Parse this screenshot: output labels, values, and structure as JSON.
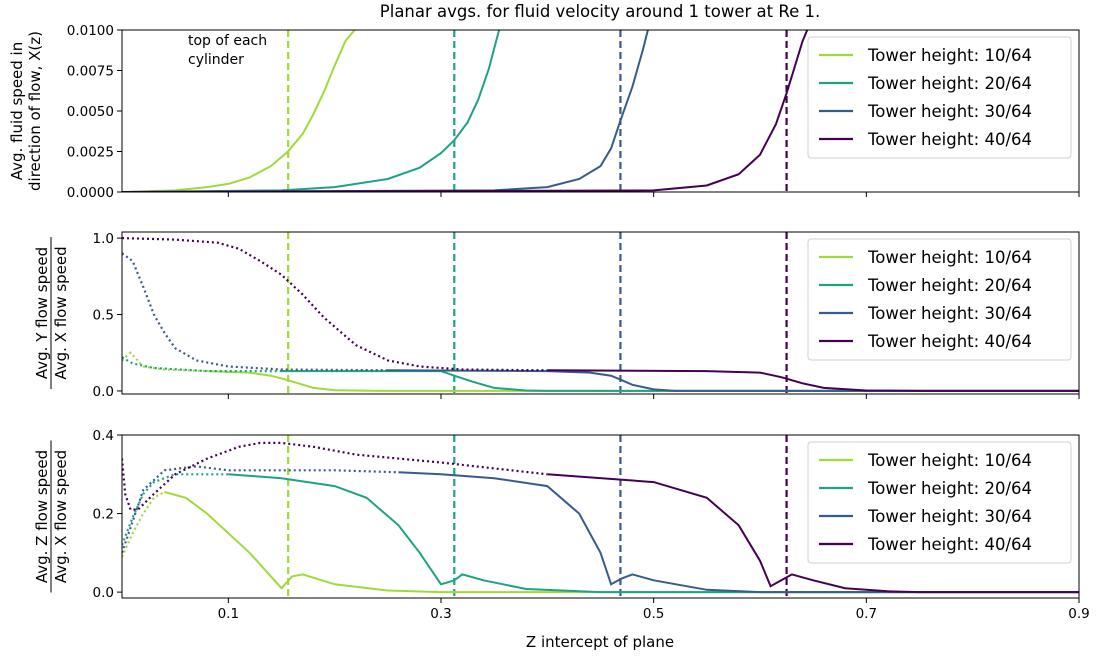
{
  "chart_data": {
    "type": "line",
    "title": "Planar avgs. for fluid velocity around 1 tower at Re 1.",
    "xlabel": "Z intercept of plane",
    "xlim": [
      0.0,
      0.9
    ],
    "x_ticks": [
      0.1,
      0.3,
      0.5,
      0.7,
      0.9
    ],
    "x_tick_labels": [
      "0.1",
      "0.3",
      "0.5",
      "0.7",
      "0.9"
    ],
    "tower_heights": [
      0.15625,
      0.3125,
      0.46875,
      0.625
    ],
    "annotation": [
      "top of each",
      "cylinder"
    ],
    "grid": false,
    "legend_position": "top-right",
    "series_meta": [
      {
        "name": "Tower height: 10/64",
        "color": "#a0da39"
      },
      {
        "name": "Tower height: 20/64",
        "color": "#1fa187"
      },
      {
        "name": "Tower height: 30/64",
        "color": "#365c8d"
      },
      {
        "name": "Tower height: 40/64",
        "color": "#440154"
      }
    ],
    "panels": [
      {
        "ylabel_lines": [
          "Avg. fluid speed in",
          "direction of flow, X(z)"
        ],
        "ylim": [
          0.0,
          0.01
        ],
        "y_ticks": [
          0.0,
          0.0025,
          0.005,
          0.0075,
          0.01
        ],
        "y_tick_labels": [
          "0.0000",
          "0.0025",
          "0.0050",
          "0.0075",
          "0.0100"
        ],
        "series": [
          {
            "name": "Tower height: 10/64",
            "points": [
              [
                0.0,
                0
              ],
              [
                0.05,
                0.0001
              ],
              [
                0.08,
                0.0003
              ],
              [
                0.1,
                0.0005
              ],
              [
                0.12,
                0.0009
              ],
              [
                0.14,
                0.0016
              ],
              [
                0.156,
                0.0025
              ],
              [
                0.17,
                0.0036
              ],
              [
                0.18,
                0.0048
              ],
              [
                0.19,
                0.0062
              ],
              [
                0.2,
                0.0078
              ],
              [
                0.21,
                0.0093
              ],
              [
                0.22,
                0.0101
              ]
            ]
          },
          {
            "name": "Tower height: 20/64",
            "points": [
              [
                0.0,
                0
              ],
              [
                0.15,
                0.0001
              ],
              [
                0.2,
                0.0003
              ],
              [
                0.25,
                0.0008
              ],
              [
                0.28,
                0.0015
              ],
              [
                0.3,
                0.0024
              ],
              [
                0.3125,
                0.0032
              ],
              [
                0.325,
                0.0043
              ],
              [
                0.335,
                0.0057
              ],
              [
                0.345,
                0.0076
              ],
              [
                0.355,
                0.0101
              ]
            ]
          },
          {
            "name": "Tower height: 30/64",
            "points": [
              [
                0.0,
                0
              ],
              [
                0.35,
                0.0001
              ],
              [
                0.4,
                0.0003
              ],
              [
                0.43,
                0.0008
              ],
              [
                0.45,
                0.0016
              ],
              [
                0.46,
                0.0027
              ],
              [
                0.46875,
                0.0044
              ],
              [
                0.48,
                0.0065
              ],
              [
                0.49,
                0.0088
              ],
              [
                0.495,
                0.0101
              ]
            ]
          },
          {
            "name": "Tower height: 40/64",
            "points": [
              [
                0.0,
                0
              ],
              [
                0.5,
                0.0001
              ],
              [
                0.55,
                0.0004
              ],
              [
                0.58,
                0.0011
              ],
              [
                0.6,
                0.0023
              ],
              [
                0.615,
                0.0042
              ],
              [
                0.625,
                0.0061
              ],
              [
                0.633,
                0.0078
              ],
              [
                0.64,
                0.0093
              ],
              [
                0.645,
                0.0101
              ]
            ]
          }
        ]
      },
      {
        "ylabel_lines": [
          "Avg. Y flow speed",
          "Avg. X flow speed"
        ],
        "ylim": [
          -0.02,
          1.04
        ],
        "y_ticks": [
          0.0,
          0.5,
          1.0
        ],
        "y_tick_labels": [
          "0.0",
          "0.5",
          "1.0"
        ],
        "series": [
          {
            "name": "Tower height: 10/64",
            "dotted": [
              [
                0.0,
                0.2
              ],
              [
                0.008,
                0.25
              ],
              [
                0.02,
                0.16
              ],
              [
                0.04,
                0.14
              ],
              [
                0.08,
                0.13
              ]
            ],
            "solid": [
              [
                0.08,
                0.13
              ],
              [
                0.12,
                0.12
              ],
              [
                0.14,
                0.1
              ],
              [
                0.156,
                0.07
              ],
              [
                0.18,
                0.02
              ],
              [
                0.2,
                0.005
              ],
              [
                0.25,
                0.0
              ],
              [
                0.9,
                0.0
              ]
            ]
          },
          {
            "name": "Tower height: 20/64",
            "dotted": [
              [
                0.0,
                0.22
              ],
              [
                0.01,
                0.18
              ],
              [
                0.03,
                0.15
              ],
              [
                0.08,
                0.13
              ],
              [
                0.15,
                0.13
              ]
            ],
            "solid": [
              [
                0.15,
                0.13
              ],
              [
                0.25,
                0.13
              ],
              [
                0.3,
                0.13
              ],
              [
                0.3125,
                0.1
              ],
              [
                0.33,
                0.06
              ],
              [
                0.35,
                0.02
              ],
              [
                0.38,
                0.003
              ],
              [
                0.4,
                0.0
              ],
              [
                0.9,
                0.0
              ]
            ]
          },
          {
            "name": "Tower height: 30/64",
            "dotted": [
              [
                0.0,
                0.9
              ],
              [
                0.01,
                0.85
              ],
              [
                0.02,
                0.68
              ],
              [
                0.03,
                0.5
              ],
              [
                0.04,
                0.38
              ],
              [
                0.05,
                0.28
              ],
              [
                0.07,
                0.2
              ],
              [
                0.1,
                0.16
              ],
              [
                0.15,
                0.14
              ],
              [
                0.25,
                0.135
              ]
            ],
            "solid": [
              [
                0.25,
                0.135
              ],
              [
                0.4,
                0.13
              ],
              [
                0.44,
                0.12
              ],
              [
                0.46,
                0.1
              ],
              [
                0.47,
                0.07
              ],
              [
                0.48,
                0.04
              ],
              [
                0.5,
                0.01
              ],
              [
                0.52,
                0.0
              ],
              [
                0.9,
                0.0
              ]
            ]
          },
          {
            "name": "Tower height: 40/64",
            "dotted": [
              [
                0.0,
                1.0
              ],
              [
                0.05,
                0.99
              ],
              [
                0.09,
                0.97
              ],
              [
                0.11,
                0.93
              ],
              [
                0.13,
                0.85
              ],
              [
                0.15,
                0.76
              ],
              [
                0.17,
                0.63
              ],
              [
                0.19,
                0.48
              ],
              [
                0.22,
                0.3
              ],
              [
                0.25,
                0.2
              ],
              [
                0.28,
                0.16
              ],
              [
                0.32,
                0.14
              ],
              [
                0.4,
                0.135
              ]
            ],
            "solid": [
              [
                0.4,
                0.135
              ],
              [
                0.55,
                0.13
              ],
              [
                0.6,
                0.12
              ],
              [
                0.62,
                0.09
              ],
              [
                0.64,
                0.05
              ],
              [
                0.66,
                0.02
              ],
              [
                0.7,
                0.003
              ],
              [
                0.75,
                0.0
              ],
              [
                0.9,
                0.0
              ]
            ]
          }
        ]
      },
      {
        "ylabel_lines": [
          "Avg. Z flow speed",
          "Avg. X flow speed"
        ],
        "ylim": [
          -0.015,
          0.4
        ],
        "y_ticks": [
          0.0,
          0.2,
          0.4
        ],
        "y_tick_labels": [
          "0.0",
          "0.2",
          "0.4"
        ],
        "series": [
          {
            "name": "Tower height: 10/64",
            "dotted": [
              [
                0.0,
                0.09
              ],
              [
                0.01,
                0.15
              ],
              [
                0.02,
                0.2
              ],
              [
                0.03,
                0.24
              ],
              [
                0.04,
                0.255
              ]
            ],
            "solid": [
              [
                0.04,
                0.255
              ],
              [
                0.06,
                0.24
              ],
              [
                0.08,
                0.2
              ],
              [
                0.1,
                0.15
              ],
              [
                0.12,
                0.1
              ],
              [
                0.14,
                0.04
              ],
              [
                0.15,
                0.01
              ],
              [
                0.16,
                0.04
              ],
              [
                0.17,
                0.045
              ],
              [
                0.2,
                0.02
              ],
              [
                0.25,
                0.004
              ],
              [
                0.3,
                0.0
              ],
              [
                0.9,
                0.0
              ]
            ]
          },
          {
            "name": "Tower height: 20/64",
            "dotted": [
              [
                0.0,
                0.12
              ],
              [
                0.01,
                0.19
              ],
              [
                0.02,
                0.25
              ],
              [
                0.03,
                0.28
              ],
              [
                0.05,
                0.3
              ],
              [
                0.1,
                0.3
              ]
            ],
            "solid": [
              [
                0.1,
                0.3
              ],
              [
                0.15,
                0.29
              ],
              [
                0.2,
                0.27
              ],
              [
                0.23,
                0.24
              ],
              [
                0.26,
                0.17
              ],
              [
                0.28,
                0.1
              ],
              [
                0.3,
                0.02
              ],
              [
                0.3125,
                0.03
              ],
              [
                0.32,
                0.045
              ],
              [
                0.34,
                0.03
              ],
              [
                0.38,
                0.008
              ],
              [
                0.45,
                0.0
              ],
              [
                0.9,
                0.0
              ]
            ]
          },
          {
            "name": "Tower height: 30/64",
            "dotted": [
              [
                0.0,
                0.1
              ],
              [
                0.02,
                0.26
              ],
              [
                0.04,
                0.31
              ],
              [
                0.07,
                0.32
              ],
              [
                0.1,
                0.31
              ],
              [
                0.2,
                0.31
              ],
              [
                0.26,
                0.305
              ]
            ],
            "solid": [
              [
                0.26,
                0.305
              ],
              [
                0.3,
                0.3
              ],
              [
                0.35,
                0.29
              ],
              [
                0.4,
                0.27
              ],
              [
                0.43,
                0.2
              ],
              [
                0.45,
                0.1
              ],
              [
                0.46,
                0.02
              ],
              [
                0.47,
                0.035
              ],
              [
                0.48,
                0.045
              ],
              [
                0.5,
                0.03
              ],
              [
                0.55,
                0.006
              ],
              [
                0.6,
                0.0
              ],
              [
                0.9,
                0.0
              ]
            ]
          },
          {
            "name": "Tower height: 40/64",
            "dotted": [
              [
                0.0,
                0.34
              ],
              [
                0.003,
                0.25
              ],
              [
                0.008,
                0.21
              ],
              [
                0.015,
                0.21
              ],
              [
                0.03,
                0.25
              ],
              [
                0.05,
                0.3
              ],
              [
                0.08,
                0.34
              ],
              [
                0.11,
                0.37
              ],
              [
                0.13,
                0.38
              ],
              [
                0.15,
                0.38
              ],
              [
                0.18,
                0.37
              ],
              [
                0.22,
                0.35
              ],
              [
                0.3,
                0.33
              ],
              [
                0.4,
                0.3
              ]
            ],
            "solid": [
              [
                0.4,
                0.3
              ],
              [
                0.5,
                0.28
              ],
              [
                0.55,
                0.24
              ],
              [
                0.58,
                0.17
              ],
              [
                0.6,
                0.08
              ],
              [
                0.61,
                0.015
              ],
              [
                0.62,
                0.03
              ],
              [
                0.63,
                0.045
              ],
              [
                0.65,
                0.03
              ],
              [
                0.68,
                0.01
              ],
              [
                0.72,
                0.002
              ],
              [
                0.75,
                0.0
              ],
              [
                0.9,
                0.0
              ]
            ]
          }
        ]
      }
    ]
  }
}
